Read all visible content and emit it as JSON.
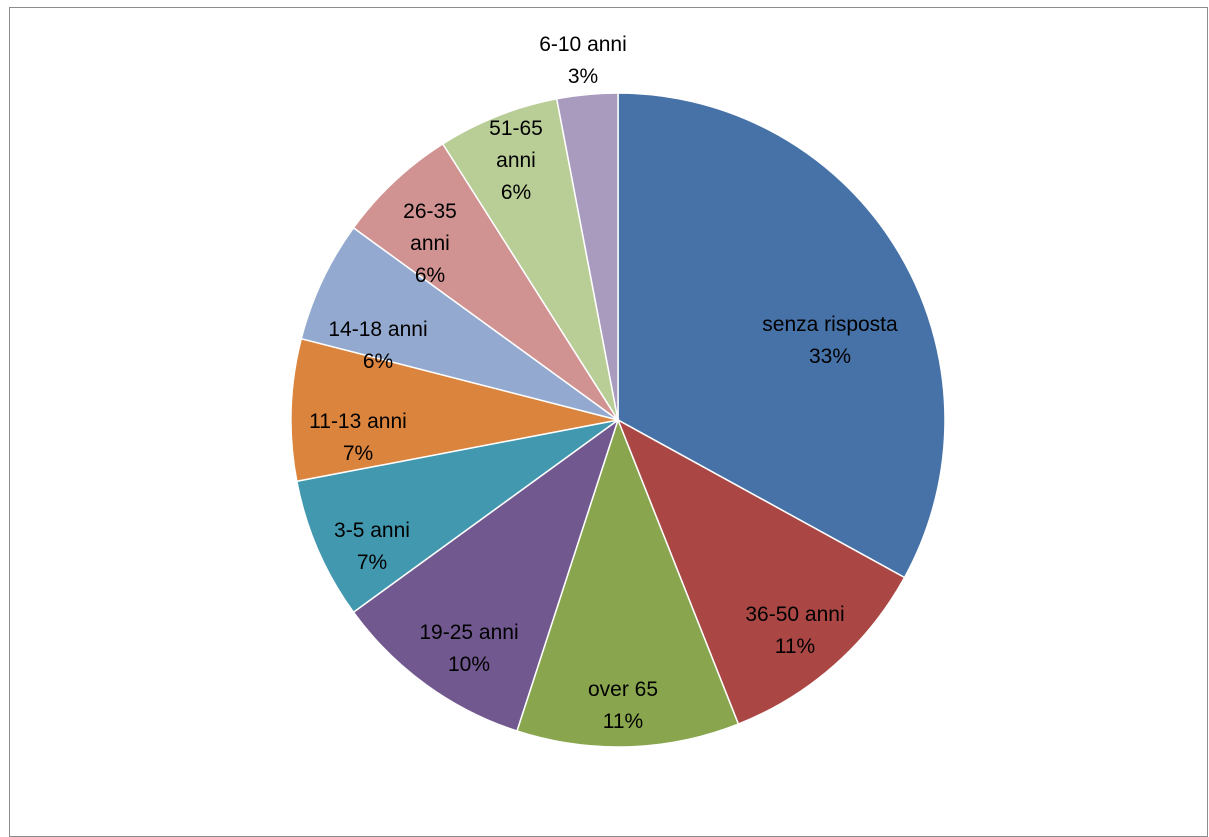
{
  "chart_data": {
    "type": "pie",
    "title": "",
    "legend": "none",
    "data_labels": "category name and percentage",
    "slices": [
      {
        "label": "senza risposta",
        "display_value": "33%",
        "value": 33,
        "color": "#4672A8"
      },
      {
        "label": "36-50 anni",
        "display_value": "11%",
        "value": 11,
        "color": "#AA4744"
      },
      {
        "label": "over 65",
        "display_value": "11%",
        "value": 11,
        "color": "#89A64E"
      },
      {
        "label": "19-25 anni",
        "display_value": "10%",
        "value": 10,
        "color": "#71588F"
      },
      {
        "label": "3-5 anni",
        "display_value": "7%",
        "value": 7,
        "color": "#4298AF"
      },
      {
        "label": "11-13 anni",
        "display_value": "7%",
        "value": 7,
        "color": "#DB843D"
      },
      {
        "label": "14-18 anni",
        "display_value": "6%",
        "value": 6,
        "color": "#93A9CF"
      },
      {
        "label": "26-35 anni",
        "display_value": "6%",
        "value": 6,
        "color": "#D19392"
      },
      {
        "label": "51-65 anni",
        "display_value": "6%",
        "value": 6,
        "color": "#B9CD96"
      },
      {
        "label": "6-10 anni",
        "display_value": "3%",
        "value": 3,
        "color": "#A99BBD"
      }
    ]
  }
}
